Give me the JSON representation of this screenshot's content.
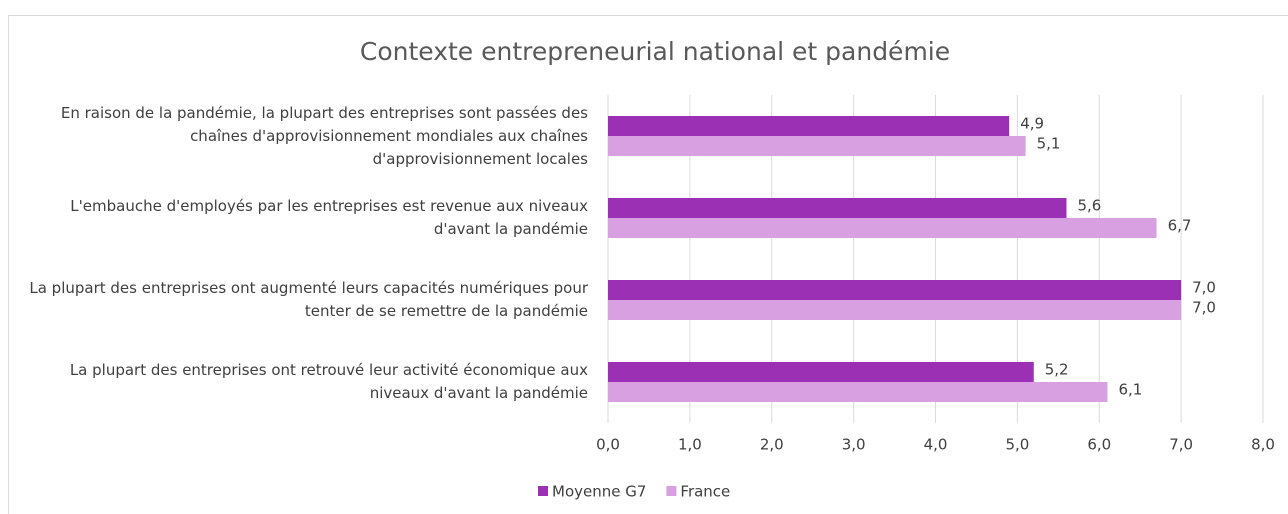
{
  "chart_data": {
    "type": "hbar",
    "title": "Contexte entrepreneurial national et pandémie",
    "categories": [
      "En raison de la pandémie, la plupart des entreprises sont passées des chaînes d'approvisionnement mondiales aux chaînes d'approvisionnement locales",
      "L'embauche d'employés par les entreprises est revenue aux niveaux d'avant la pandémie",
      "La plupart des entreprises ont augmenté leurs capacités numériques pour tenter de se remettre de la pandémie",
      "La plupart des entreprises ont retrouvé leur activité économique aux niveaux d'avant la pandémie"
    ],
    "series": [
      {
        "name": "Moyenne G7",
        "color": "#9b30b5",
        "values": [
          4.9,
          5.6,
          7.0,
          5.2
        ],
        "value_labels": [
          "4,9",
          "5,6",
          "7,0",
          "5,2"
        ]
      },
      {
        "name": "France",
        "color": "#d8a0e0",
        "values": [
          5.1,
          6.7,
          7.0,
          6.1
        ],
        "value_labels": [
          "5,1",
          "6,7",
          "7,0",
          "6,1"
        ]
      }
    ],
    "xlim": [
      0,
      8
    ],
    "xticks": [
      {
        "value": 0,
        "label": "0,0"
      },
      {
        "value": 1,
        "label": "1,0"
      },
      {
        "value": 2,
        "label": "2,0"
      },
      {
        "value": 3,
        "label": "3,0"
      },
      {
        "value": 4,
        "label": "4,0"
      },
      {
        "value": 5,
        "label": "5,0"
      },
      {
        "value": 6,
        "label": "6,0"
      },
      {
        "value": 7,
        "label": "7,0"
      },
      {
        "value": 8,
        "label": "8,0"
      }
    ],
    "grid": true,
    "legend": "bottom"
  }
}
